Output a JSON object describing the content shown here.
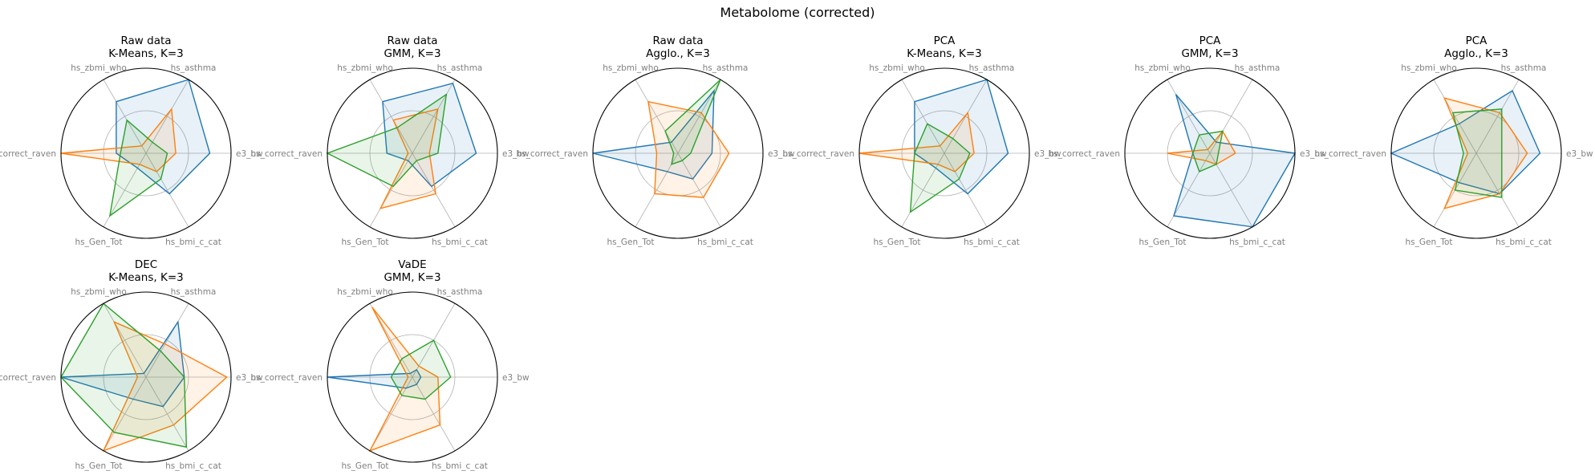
{
  "figure": {
    "title": "Metabolome (corrected)"
  },
  "chart_data": {
    "type": "radar",
    "axes": [
      "e3_bw",
      "hs_asthma",
      "hs_zbmi_who",
      "hs_correct_raven",
      "hs_Gen_Tot",
      "hs_bmi_c_cat"
    ],
    "series_colors": [
      "#1f77b4",
      "#ff7f0e",
      "#2ca02c"
    ],
    "radial_range": [
      0,
      1
    ],
    "grid_ring": 0.5,
    "panels": [
      {
        "title_line1": "Raw data",
        "title_line2": "K-Means, K=3",
        "series": [
          {
            "values": [
              0.75,
              1.0,
              0.7,
              0.35,
              0.2,
              0.55
            ]
          },
          {
            "values": [
              0.35,
              0.6,
              0.1,
              1.0,
              0.15,
              0.25
            ]
          },
          {
            "values": [
              0.25,
              0.15,
              0.45,
              0.3,
              0.85,
              0.35
            ]
          }
        ]
      },
      {
        "title_line1": "Raw data",
        "title_line2": "GMM, K=3",
        "series": [
          {
            "values": [
              0.75,
              0.95,
              0.7,
              0.3,
              0.1,
              0.45
            ]
          },
          {
            "values": [
              0.2,
              0.6,
              0.45,
              0.05,
              0.75,
              0.55
            ]
          },
          {
            "values": [
              0.3,
              0.8,
              0.35,
              1.0,
              0.45,
              0.1
            ]
          }
        ]
      },
      {
        "title_line1": "Raw data",
        "title_line2": "Agglo., K=3",
        "series": [
          {
            "values": [
              0.4,
              0.85,
              0.15,
              1.0,
              0.25,
              0.35
            ]
          },
          {
            "values": [
              0.6,
              0.55,
              0.7,
              0.25,
              0.55,
              0.6
            ]
          },
          {
            "values": [
              0.15,
              1.0,
              0.3,
              0.05,
              0.15,
              0.1
            ]
          }
        ]
      },
      {
        "title_line1": "PCA",
        "title_line2": "K-Means, K=3",
        "series": [
          {
            "values": [
              0.75,
              1.0,
              0.7,
              0.35,
              0.2,
              0.55
            ]
          },
          {
            "values": [
              0.35,
              0.55,
              0.1,
              1.0,
              0.15,
              0.25
            ]
          },
          {
            "values": [
              0.3,
              0.2,
              0.4,
              0.35,
              0.8,
              0.35
            ]
          }
        ]
      },
      {
        "title_line1": "PCA",
        "title_line2": "GMM, K=3",
        "series": [
          {
            "values": [
              1.0,
              0.15,
              0.8,
              0.2,
              0.85,
              1.0
            ]
          },
          {
            "values": [
              0.3,
              0.3,
              0.05,
              0.5,
              0.1,
              0.15
            ]
          },
          {
            "values": [
              0.1,
              0.3,
              0.25,
              0.2,
              0.25,
              0.15
            ]
          }
        ]
      },
      {
        "title_line1": "PCA",
        "title_line2": "Agglo., K=3",
        "series": [
          {
            "values": [
              0.75,
              0.85,
              0.4,
              1.0,
              0.4,
              0.55
            ]
          },
          {
            "values": [
              0.6,
              0.55,
              0.75,
              0.1,
              0.75,
              0.55
            ]
          },
          {
            "values": [
              0.3,
              0.6,
              0.55,
              0.15,
              0.5,
              0.6
            ]
          }
        ]
      },
      {
        "title_line1": "DEC",
        "title_line2": "K-Means, K=3",
        "series": [
          {
            "values": [
              0.45,
              0.75,
              0.05,
              1.0,
              0.3,
              0.4
            ]
          },
          {
            "values": [
              0.95,
              0.45,
              0.75,
              0.1,
              1.0,
              0.65
            ]
          },
          {
            "values": [
              0.45,
              0.35,
              1.0,
              1.0,
              0.75,
              0.95
            ]
          }
        ]
      },
      {
        "title_line1": "VaDE",
        "title_line2": "GMM, K=3",
        "series": [
          {
            "values": [
              0.1,
              0.1,
              0.05,
              1.0,
              0.15,
              0.1
            ]
          },
          {
            "values": [
              0.3,
              0.15,
              0.95,
              0.05,
              1.0,
              0.65
            ]
          },
          {
            "values": [
              0.45,
              0.5,
              0.25,
              0.25,
              0.25,
              0.3
            ]
          }
        ]
      }
    ]
  }
}
